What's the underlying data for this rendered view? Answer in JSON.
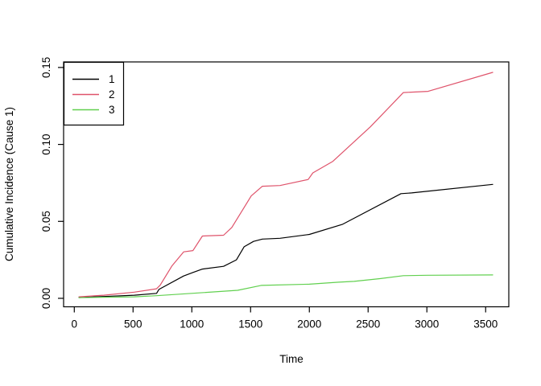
{
  "chart_data": {
    "type": "line",
    "title": "",
    "xlabel": "Time",
    "ylabel": "Cumulative Incidence (Cause 1)",
    "grid": false,
    "xlim": [
      -91,
      3697
    ],
    "ylim": [
      -0.0055,
      0.1536
    ],
    "x_ticks": {
      "values": [
        0,
        500,
        1000,
        1500,
        2000,
        2500,
        3000,
        3500
      ],
      "labels": [
        "0",
        "500",
        "1000",
        "1500",
        "2000",
        "2500",
        "3000",
        "3500"
      ]
    },
    "y_ticks": {
      "values": [
        0,
        0.05,
        0.1,
        0.15
      ],
      "labels": [
        "0.00",
        "0.05",
        "0.10",
        "0.15"
      ]
    },
    "legend": {
      "position": "top-left",
      "entries": [
        "1",
        "2",
        "3"
      ]
    },
    "series": [
      {
        "name": "1",
        "color": "#000000",
        "points": [
          [
            40,
            0.0005
          ],
          [
            250,
            0.0012
          ],
          [
            510,
            0.002
          ],
          [
            700,
            0.0032
          ],
          [
            720,
            0.0058
          ],
          [
            930,
            0.0145
          ],
          [
            1010,
            0.0168
          ],
          [
            1090,
            0.019
          ],
          [
            1270,
            0.0208
          ],
          [
            1380,
            0.025
          ],
          [
            1445,
            0.0335
          ],
          [
            1525,
            0.037
          ],
          [
            1600,
            0.0385
          ],
          [
            1750,
            0.039
          ],
          [
            2000,
            0.0415
          ],
          [
            2280,
            0.048
          ],
          [
            2780,
            0.068
          ],
          [
            2870,
            0.0685
          ],
          [
            3560,
            0.074
          ]
        ]
      },
      {
        "name": "2",
        "color": "#DF536B",
        "points": [
          [
            40,
            0.001
          ],
          [
            250,
            0.002
          ],
          [
            510,
            0.004
          ],
          [
            700,
            0.0062
          ],
          [
            730,
            0.0085
          ],
          [
            830,
            0.021
          ],
          [
            930,
            0.0302
          ],
          [
            1010,
            0.031
          ],
          [
            1090,
            0.0405
          ],
          [
            1270,
            0.041
          ],
          [
            1340,
            0.046
          ],
          [
            1445,
            0.059
          ],
          [
            1505,
            0.0665
          ],
          [
            1600,
            0.0728
          ],
          [
            1750,
            0.0733
          ],
          [
            1990,
            0.0772
          ],
          [
            2030,
            0.0815
          ],
          [
            2200,
            0.089
          ],
          [
            2520,
            0.1115
          ],
          [
            2800,
            0.1337
          ],
          [
            3010,
            0.1345
          ],
          [
            3560,
            0.1468
          ]
        ]
      },
      {
        "name": "3",
        "color": "#61D04F",
        "points": [
          [
            40,
            0.0004
          ],
          [
            250,
            0.0007
          ],
          [
            510,
            0.001
          ],
          [
            700,
            0.0017
          ],
          [
            1050,
            0.0035
          ],
          [
            1390,
            0.0052
          ],
          [
            1590,
            0.0084
          ],
          [
            2000,
            0.0092
          ],
          [
            2250,
            0.0105
          ],
          [
            2380,
            0.011
          ],
          [
            2600,
            0.0128
          ],
          [
            2800,
            0.0147
          ],
          [
            3000,
            0.015
          ],
          [
            3560,
            0.0152
          ]
        ]
      }
    ]
  }
}
